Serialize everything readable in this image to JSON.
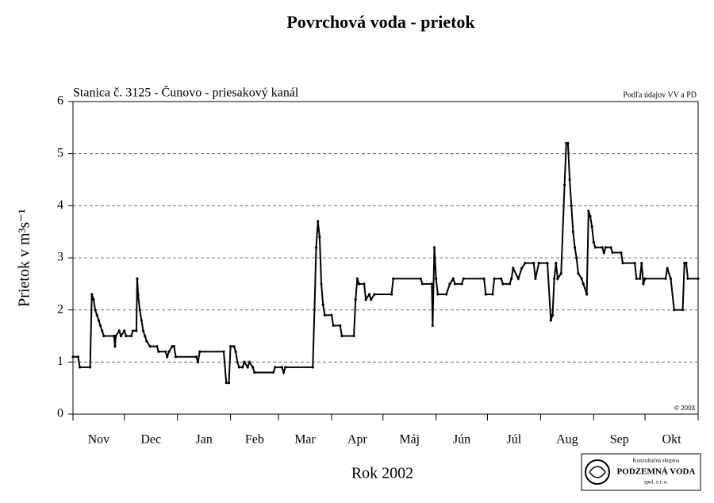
{
  "chart_data": {
    "type": "line",
    "title": "Povrchová voda - prietok",
    "subtitle": "Stanica č. 3125 - Čunovo - priesakový kanál",
    "source_note": "Podľa údajov VV a PD",
    "copyright": "© 2003",
    "y_label": "Prietok v m³s⁻¹",
    "x_label": "Rok 2002",
    "logo": {
      "line1": "Konzultačná skupina",
      "line2": "PODZEMNÁ VODA",
      "line3": "spol. s r. o."
    },
    "xlim": [
      0,
      365
    ],
    "xticks": [
      {
        "value": 0,
        "label": "Nov"
      },
      {
        "value": 30,
        "label": "Dec"
      },
      {
        "value": 61,
        "label": "Jan"
      },
      {
        "value": 92,
        "label": "Feb"
      },
      {
        "value": 120,
        "label": "Mar"
      },
      {
        "value": 151,
        "label": "Apr"
      },
      {
        "value": 181,
        "label": "Máj"
      },
      {
        "value": 212,
        "label": "Jún"
      },
      {
        "value": 242,
        "label": "Júl"
      },
      {
        "value": 273,
        "label": "Aug"
      },
      {
        "value": 304,
        "label": "Sep"
      },
      {
        "value": 334,
        "label": "Okt"
      }
    ],
    "ylim": [
      0,
      6
    ],
    "yticks": [
      0,
      1,
      2,
      3,
      4,
      5,
      6
    ],
    "grid": true,
    "x": [
      0,
      3,
      4,
      10,
      11,
      12,
      13,
      14,
      15,
      16,
      17,
      18,
      24,
      24.5,
      25,
      27,
      28,
      30,
      31,
      34,
      35,
      37,
      37.5,
      38,
      39,
      40,
      41,
      42,
      43,
      45,
      49,
      50,
      54,
      55,
      56,
      58,
      59,
      60,
      72,
      73,
      74,
      88,
      89.5,
      91,
      92,
      94,
      95,
      96,
      97,
      99,
      100,
      102,
      103,
      105,
      106,
      117,
      118,
      122,
      123,
      124,
      140,
      141,
      142,
      143,
      144,
      145,
      146,
      147,
      151,
      152,
      156,
      157,
      164,
      165,
      166,
      167,
      170,
      171,
      173,
      174,
      176,
      186,
      187,
      203,
      204,
      209.5,
      210,
      211,
      212,
      213,
      218,
      220,
      222,
      223,
      227,
      228,
      240,
      241,
      245,
      246,
      250,
      251,
      255,
      256,
      257,
      260,
      262,
      264,
      269,
      270,
      272,
      277,
      279,
      280,
      281,
      282,
      283,
      285,
      287,
      288,
      289,
      290,
      291,
      292,
      293,
      294,
      295,
      297,
      298,
      300,
      301,
      302,
      303,
      304,
      305,
      309,
      310,
      311,
      314,
      315,
      320,
      321,
      328,
      329,
      331,
      332,
      333,
      334,
      346,
      347,
      349,
      351,
      356,
      357,
      358,
      359,
      365
    ],
    "series": [
      {
        "name": "Prietok",
        "color": "#000000",
        "values": [
          1.1,
          1.1,
          0.9,
          0.9,
          2.3,
          2.2,
          2.0,
          1.9,
          1.8,
          1.7,
          1.6,
          1.5,
          1.5,
          1.3,
          1.5,
          1.6,
          1.5,
          1.6,
          1.5,
          1.5,
          1.6,
          1.6,
          2.6,
          2.3,
          2.0,
          1.8,
          1.6,
          1.5,
          1.4,
          1.3,
          1.3,
          1.2,
          1.2,
          1.1,
          1.2,
          1.3,
          1.3,
          1.1,
          1.1,
          1.0,
          1.2,
          1.2,
          0.6,
          0.6,
          1.3,
          1.3,
          1.2,
          1.0,
          0.9,
          0.9,
          1.0,
          0.9,
          1.0,
          0.9,
          0.8,
          0.8,
          0.9,
          0.9,
          0.8,
          0.9,
          0.9,
          2.0,
          3.2,
          3.7,
          3.4,
          2.5,
          2.1,
          1.9,
          1.9,
          1.7,
          1.7,
          1.5,
          1.5,
          2.2,
          2.6,
          2.5,
          2.5,
          2.2,
          2.3,
          2.2,
          2.3,
          2.3,
          2.6,
          2.6,
          2.5,
          2.5,
          1.7,
          3.2,
          2.6,
          2.3,
          2.3,
          2.5,
          2.6,
          2.5,
          2.5,
          2.6,
          2.6,
          2.3,
          2.3,
          2.6,
          2.6,
          2.5,
          2.5,
          2.6,
          2.8,
          2.6,
          2.8,
          2.9,
          2.9,
          2.6,
          2.9,
          2.9,
          1.8,
          1.9,
          2.6,
          2.9,
          2.6,
          2.7,
          4.4,
          5.2,
          5.2,
          4.5,
          4.0,
          3.5,
          3.2,
          3.0,
          2.7,
          2.6,
          2.5,
          2.3,
          3.9,
          3.8,
          3.6,
          3.3,
          3.2,
          3.2,
          3.1,
          3.2,
          3.2,
          3.1,
          3.1,
          2.9,
          2.9,
          2.6,
          2.6,
          2.9,
          2.5,
          2.6,
          2.6,
          2.8,
          2.6,
          2.0,
          2.0,
          2.9,
          2.9,
          2.6,
          2.6
        ]
      }
    ]
  }
}
